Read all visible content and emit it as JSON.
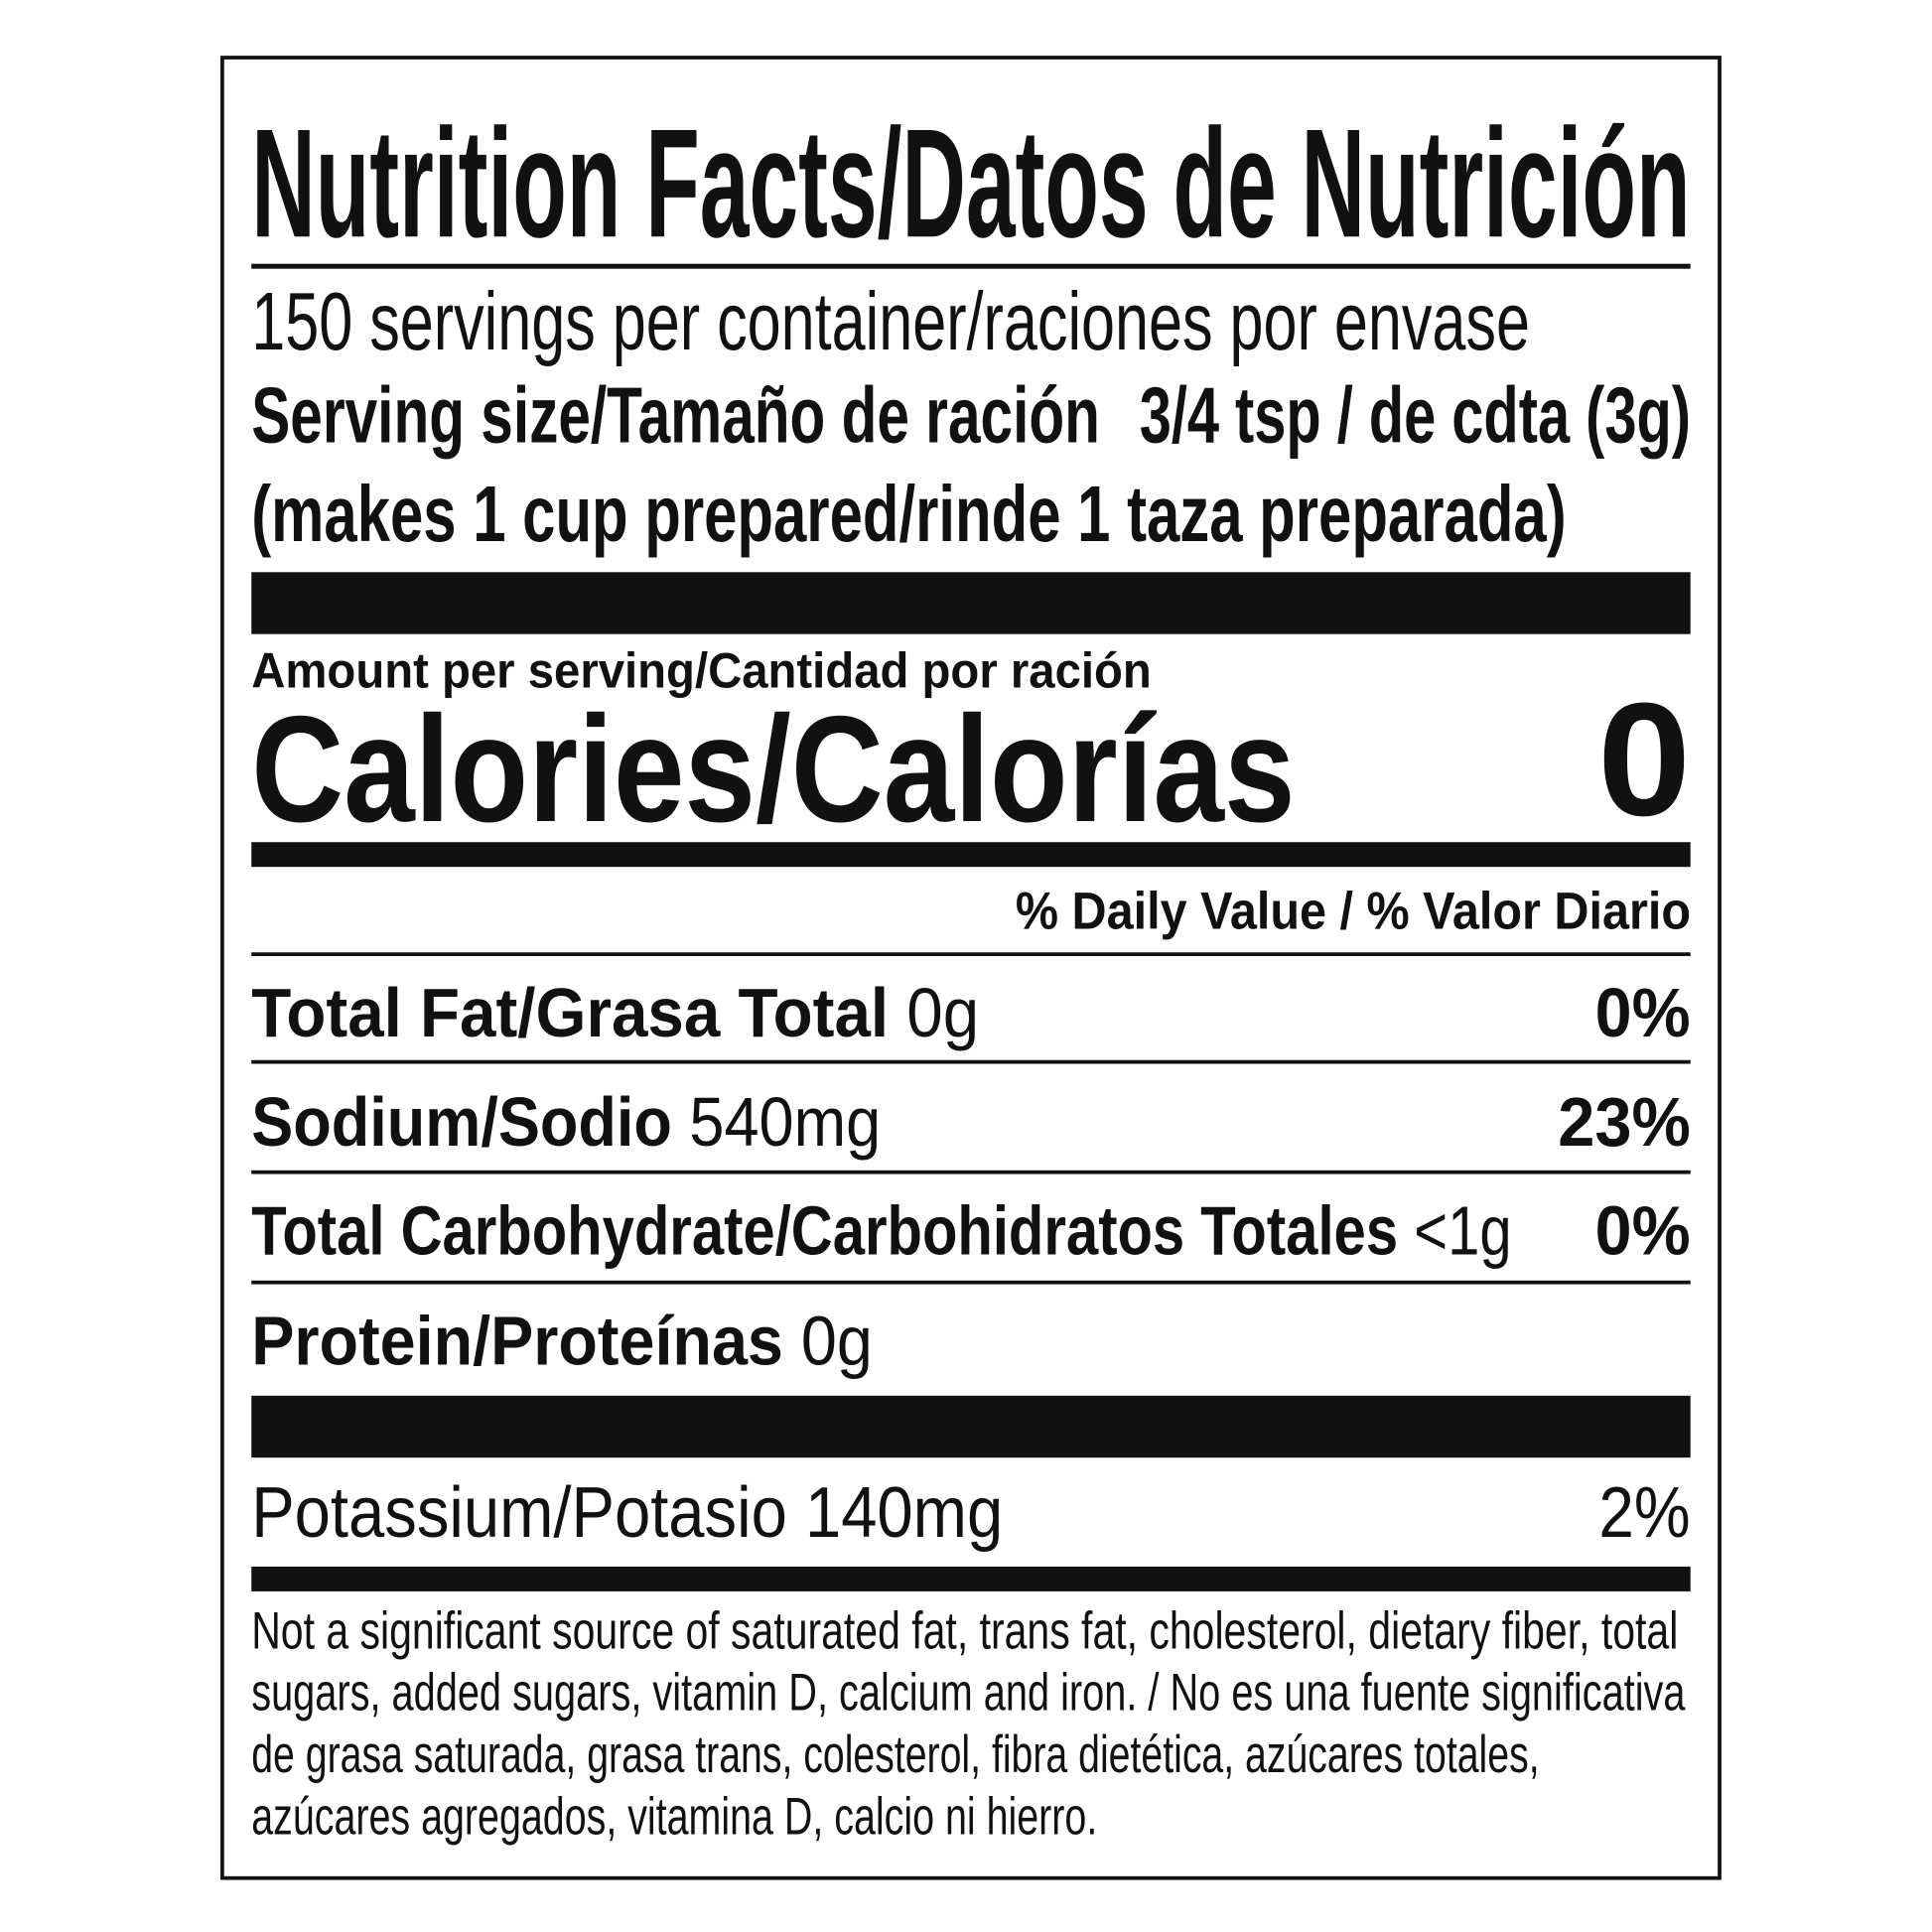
{
  "title": "Nutrition Facts/Datos de Nutrición",
  "servings_per_container": "150 servings per container/raciones por envase",
  "serving_size": {
    "label": "Serving size/Tamaño de ración",
    "value": "3/4 tsp / de cdta (3g)"
  },
  "serving_note": "(makes 1 cup prepared/rinde 1 taza preparada)",
  "amount_per_serving": "Amount per serving/Cantidad por ración",
  "calories": {
    "label": "Calories/Calorías",
    "value": "0"
  },
  "daily_value_header": "% Daily Value / % Valor Diario",
  "nutrients": [
    {
      "label": "Total Fat/Grasa Total",
      "amount": "0g",
      "dv": "0%"
    },
    {
      "label": "Sodium/Sodio",
      "amount": "540mg",
      "dv": "23%"
    },
    {
      "label": "Total Carbohydrate/Carbohidratos Totales",
      "amount": "<1g",
      "dv": "0%"
    },
    {
      "label": "Protein/Proteínas",
      "amount": "0g",
      "dv": ""
    }
  ],
  "potassium": {
    "label": "Potassium/Potasio",
    "amount": "140mg",
    "dv": "2%"
  },
  "footnote": [
    "Not a significant source of saturated fat, trans fat, cholesterol, dietary fiber, total",
    "sugars, added sugars, vitamin D, calcium and iron. / No es una fuente significativa",
    "de grasa saturada, grasa trans, colesterol, fibra dietética, azúcares totales,",
    "azúcares agregados, vitamina D, calcio ni hierro."
  ]
}
